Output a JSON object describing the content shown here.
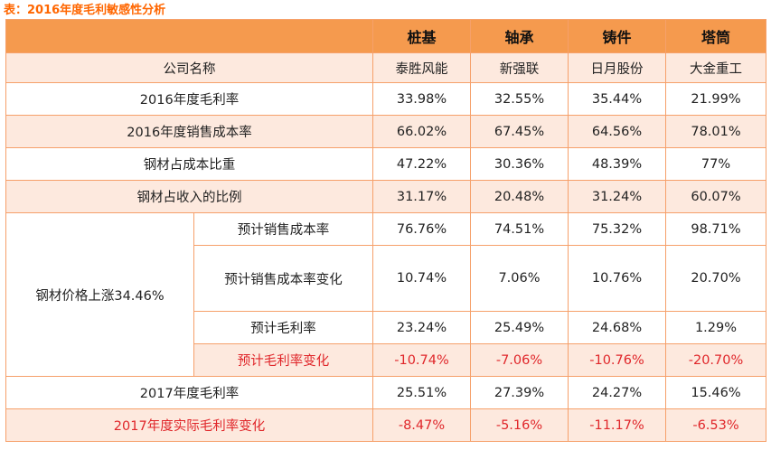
{
  "caption": "表：2016年度毛利敏感性分析",
  "header": {
    "industries": [
      "桩基",
      "轴承",
      "铸件",
      "塔筒"
    ]
  },
  "company_row": {
    "label": "公司名称",
    "companies": [
      "泰胜风能",
      "新强联",
      "日月股份",
      "大金重工"
    ]
  },
  "rows_top": [
    {
      "label": "2016年度毛利率",
      "values": [
        "33.98%",
        "32.55%",
        "35.44%",
        "21.99%"
      ]
    },
    {
      "label": "2016年度销售成本率",
      "values": [
        "66.02%",
        "67.45%",
        "64.56%",
        "78.01%"
      ]
    },
    {
      "label": "钢材占成本比重",
      "values": [
        "47.22%",
        "30.36%",
        "48.39%",
        "77%"
      ]
    },
    {
      "label": "钢材占收入的比例",
      "values": [
        "31.17%",
        "20.48%",
        "31.24%",
        "60.07%"
      ]
    }
  ],
  "scenario": {
    "label": "钢材价格上涨34.46%",
    "rows": [
      {
        "label": "预计销售成本率",
        "values": [
          "76.76%",
          "74.51%",
          "75.32%",
          "98.71%"
        ]
      },
      {
        "label": "预计销售成本率变化",
        "values": [
          "10.74%",
          "7.06%",
          "10.76%",
          "20.70%"
        ]
      },
      {
        "label": "预计毛利率",
        "values": [
          "23.24%",
          "25.49%",
          "24.68%",
          "1.29%"
        ]
      },
      {
        "label": "预计毛利率变化",
        "values": [
          "-10.74%",
          "-7.06%",
          "-10.76%",
          "-20.70%"
        ]
      }
    ]
  },
  "rows_bottom": [
    {
      "label": "2017年度毛利率",
      "values": [
        "25.51%",
        "27.39%",
        "24.27%",
        "15.46%"
      ]
    },
    {
      "label": "2017年度实际毛利率变化",
      "values": [
        "-8.47%",
        "-5.16%",
        "-11.17%",
        "-6.53%"
      ]
    }
  ],
  "colors": {
    "header_bg": "#f59a4e",
    "pink_row": "#fde9de",
    "border": "#f6a06a",
    "highlight_red": "#e0262a",
    "caption_orange": "#ff6600"
  }
}
